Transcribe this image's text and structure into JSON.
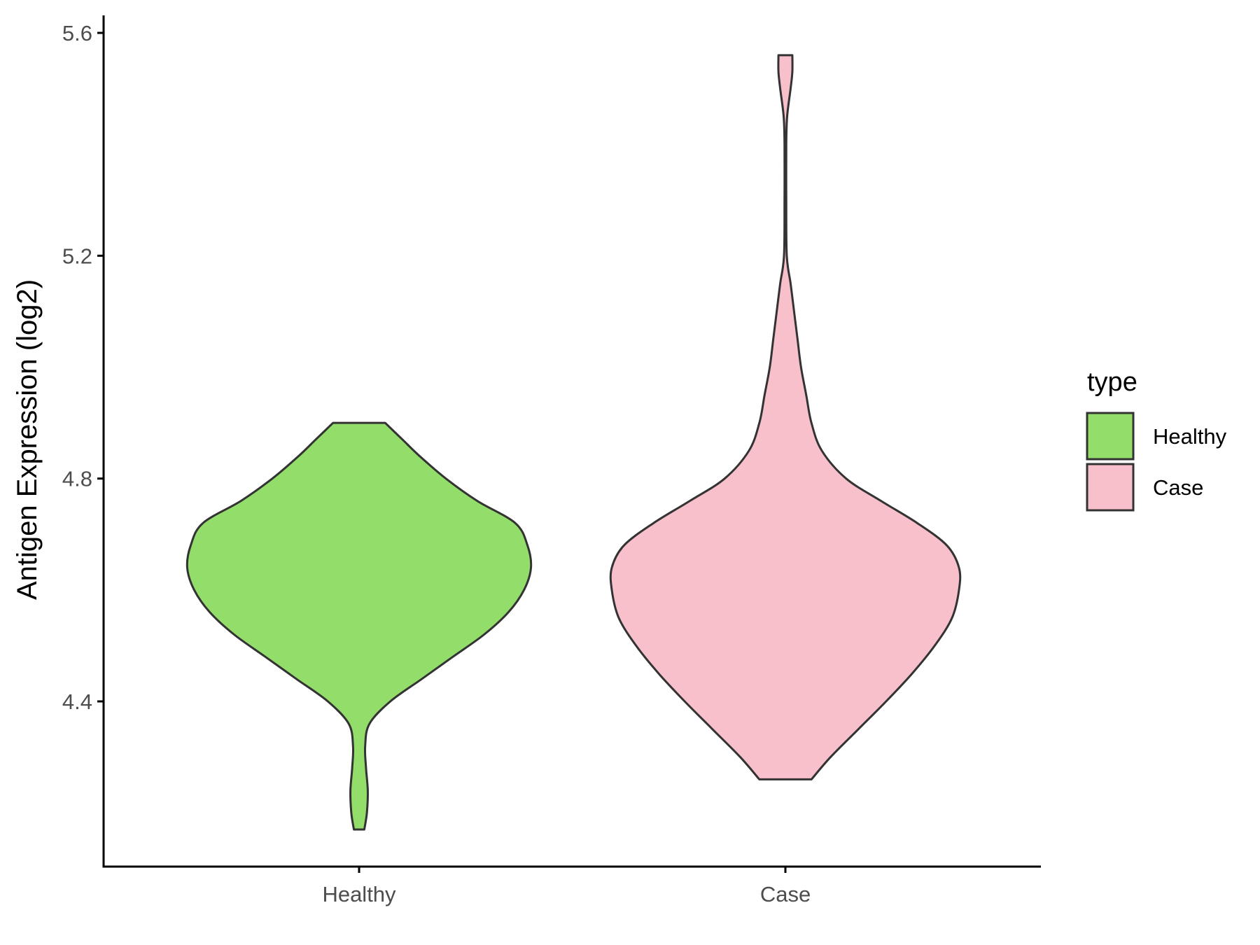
{
  "chart_data": {
    "type": "violin",
    "ylabel": "Antigen Expression (log2)",
    "xlabel": "",
    "categories": [
      "Healthy",
      "Case"
    ],
    "ylim": [
      4.1,
      5.63
    ],
    "yticks": [
      4.4,
      4.8,
      5.2,
      5.6
    ],
    "ytick_labels": [
      "4.4",
      "4.8",
      "5.2",
      "5.6"
    ],
    "grid": false,
    "legend": {
      "title": "type",
      "position": "right",
      "entries": [
        {
          "label": "Healthy",
          "color": "#93DD6A"
        },
        {
          "label": "Case",
          "color": "#F8C0CB"
        }
      ]
    },
    "series": [
      {
        "name": "Healthy",
        "color": "#93DD6A",
        "range": [
          4.17,
          4.9
        ],
        "density": [
          [
            4.17,
            0.03
          ],
          [
            4.2,
            0.045
          ],
          [
            4.24,
            0.05
          ],
          [
            4.28,
            0.04
          ],
          [
            4.32,
            0.035
          ],
          [
            4.36,
            0.06
          ],
          [
            4.4,
            0.18
          ],
          [
            4.44,
            0.36
          ],
          [
            4.48,
            0.54
          ],
          [
            4.52,
            0.72
          ],
          [
            4.56,
            0.86
          ],
          [
            4.6,
            0.95
          ],
          [
            4.64,
            0.99
          ],
          [
            4.68,
            0.97
          ],
          [
            4.72,
            0.9
          ],
          [
            4.76,
            0.68
          ],
          [
            4.8,
            0.5
          ],
          [
            4.84,
            0.35
          ],
          [
            4.87,
            0.25
          ],
          [
            4.9,
            0.15
          ]
        ]
      },
      {
        "name": "Case",
        "color": "#F8C0CB",
        "range": [
          4.26,
          5.56
        ],
        "density": [
          [
            4.26,
            0.15
          ],
          [
            4.3,
            0.26
          ],
          [
            4.35,
            0.42
          ],
          [
            4.4,
            0.58
          ],
          [
            4.45,
            0.73
          ],
          [
            4.5,
            0.86
          ],
          [
            4.55,
            0.96
          ],
          [
            4.6,
            1.0
          ],
          [
            4.64,
            1.0
          ],
          [
            4.68,
            0.93
          ],
          [
            4.72,
            0.76
          ],
          [
            4.76,
            0.55
          ],
          [
            4.8,
            0.35
          ],
          [
            4.85,
            0.21
          ],
          [
            4.9,
            0.15
          ],
          [
            4.95,
            0.12
          ],
          [
            5.0,
            0.09
          ],
          [
            5.05,
            0.07
          ],
          [
            5.1,
            0.05
          ],
          [
            5.15,
            0.03
          ],
          [
            5.2,
            0.008
          ],
          [
            5.3,
            0.005
          ],
          [
            5.4,
            0.005
          ],
          [
            5.45,
            0.01
          ],
          [
            5.5,
            0.03
          ],
          [
            5.53,
            0.04
          ],
          [
            5.56,
            0.04
          ]
        ]
      }
    ]
  }
}
